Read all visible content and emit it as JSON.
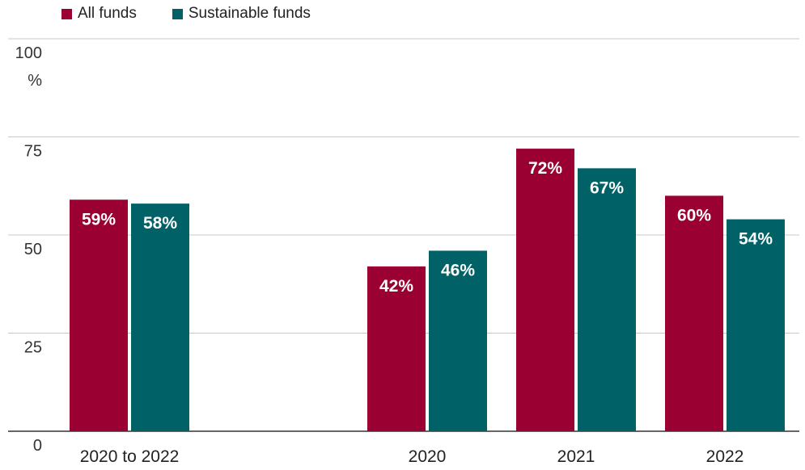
{
  "chart_data": {
    "type": "bar",
    "title": "",
    "xlabel": "",
    "ylabel": "",
    "ylim": [
      0,
      100
    ],
    "y_ticks": [
      0,
      25,
      50,
      75,
      100
    ],
    "y_unit_label": "%",
    "grid": true,
    "legend_position": "top-left",
    "categories": [
      "2020 to 2022",
      "2020",
      "2021",
      "2022"
    ],
    "series": [
      {
        "name": "All funds",
        "color": "#9b0032",
        "values": [
          59,
          42,
          72,
          60
        ],
        "labels": [
          "59%",
          "42%",
          "72%",
          "60%"
        ]
      },
      {
        "name": "Sustainable funds",
        "color": "#006267",
        "values": [
          58,
          46,
          67,
          54
        ],
        "labels": [
          "58%",
          "46%",
          "67%",
          "54%"
        ]
      }
    ]
  }
}
